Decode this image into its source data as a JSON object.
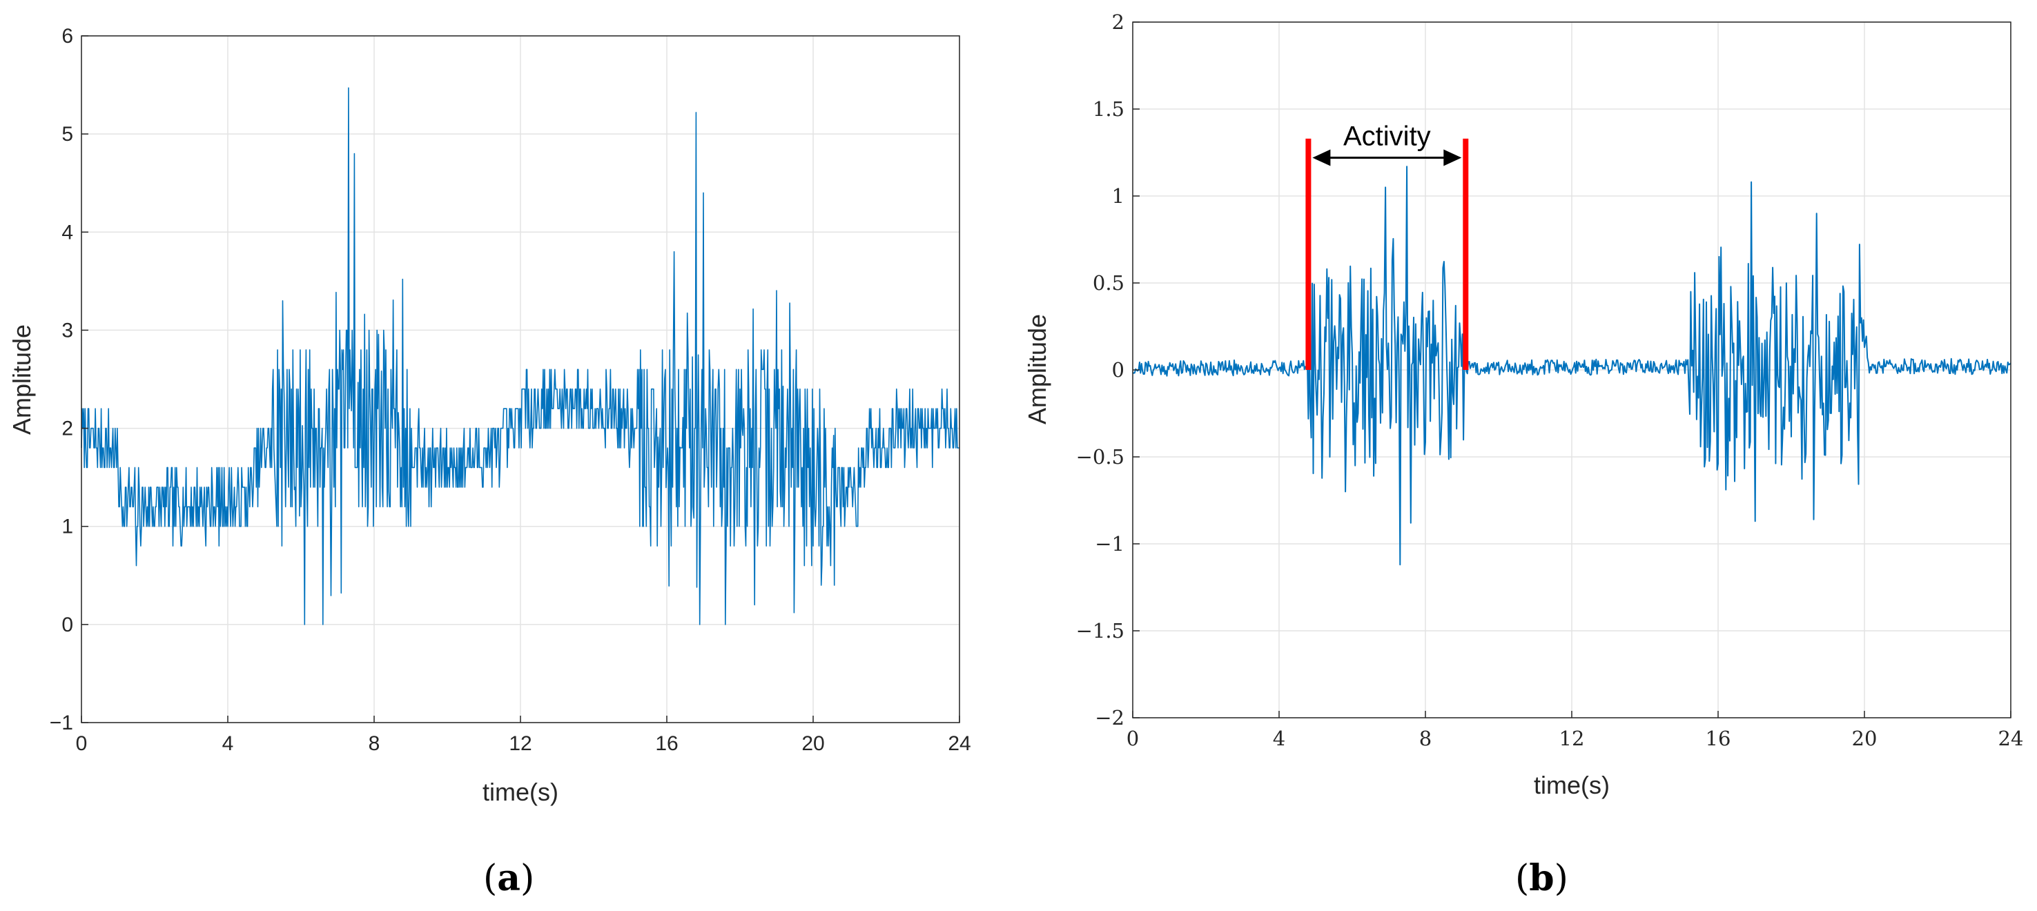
{
  "chart_data": [
    {
      "type": "line",
      "panel": "a",
      "caption_letter": "a",
      "xlabel": "time(s)",
      "ylabel": "Amplitude",
      "xlim": [
        0,
        24
      ],
      "ylim": [
        -1,
        6
      ],
      "xticks": [
        0,
        4,
        8,
        12,
        16,
        20,
        24
      ],
      "yticks": [
        -1,
        0,
        1,
        2,
        3,
        4,
        5,
        6
      ],
      "ytick_labels": [
        "−1",
        "0",
        "1",
        "2",
        "3",
        "4",
        "5",
        "6"
      ],
      "grid": true,
      "color": "#0072BD",
      "samples": 1200,
      "baseline": [
        [
          0,
          1.9
        ],
        [
          0.9,
          1.8
        ],
        [
          1.1,
          1.3
        ],
        [
          1.5,
          1.2
        ],
        [
          4.5,
          1.25
        ],
        [
          5,
          1.8
        ],
        [
          7.5,
          2.1
        ],
        [
          9,
          1.9
        ],
        [
          9.5,
          1.6
        ],
        [
          10.8,
          1.7
        ],
        [
          11.8,
          1.9
        ],
        [
          12,
          2.2
        ],
        [
          13.5,
          2.3
        ],
        [
          14.5,
          2.2
        ],
        [
          15.5,
          1.8
        ],
        [
          17,
          1.8
        ],
        [
          19.5,
          1.8
        ],
        [
          20.5,
          1.3
        ],
        [
          21.2,
          1.4
        ],
        [
          21.5,
          1.8
        ],
        [
          22.5,
          2.0
        ],
        [
          24,
          2.0
        ]
      ],
      "activity_windows": [
        [
          5.2,
          9
        ],
        [
          15.2,
          20.6
        ]
      ],
      "peaks": [
        [
          7.3,
          5.47
        ],
        [
          7.45,
          4.8
        ],
        [
          16.8,
          5.22
        ],
        [
          17.0,
          4.4
        ],
        [
          5.5,
          3.3
        ],
        [
          16.2,
          3.8
        ]
      ],
      "dips": [
        [
          6.1,
          0.0
        ],
        [
          6.6,
          0.0
        ],
        [
          16.9,
          0.0
        ],
        [
          17.6,
          0.0
        ],
        [
          1.5,
          0.6
        ],
        [
          18.4,
          0.2
        ]
      ]
    },
    {
      "type": "line",
      "panel": "b",
      "caption_letter": "b",
      "xlabel": "time(s)",
      "ylabel": "Amplitude",
      "xlim": [
        0,
        24
      ],
      "ylim": [
        -2,
        2
      ],
      "xticks": [
        0,
        4,
        8,
        12,
        16,
        20,
        24
      ],
      "yticks": [
        -2,
        -1.5,
        -1,
        -0.5,
        0,
        0.5,
        1,
        1.5,
        2
      ],
      "ytick_labels": [
        "−2",
        "−1.5",
        "−1",
        "−0.5",
        "0",
        "0.5",
        "1",
        "1.5",
        "2"
      ],
      "grid": true,
      "color": "#0072BD",
      "samples": 900,
      "baseline": [
        [
          0,
          0.01
        ],
        [
          24,
          0.02
        ]
      ],
      "activity_windows": [
        [
          4.8,
          9.1
        ],
        [
          15.2,
          20.1
        ]
      ],
      "peaks": [
        [
          6.9,
          1.05
        ],
        [
          7.5,
          1.17
        ],
        [
          16.9,
          1.08
        ],
        [
          5.3,
          0.58
        ],
        [
          18.7,
          0.9
        ]
      ],
      "dips": [
        [
          7.3,
          -1.12
        ],
        [
          7.6,
          -0.88
        ],
        [
          17.0,
          -0.87
        ],
        [
          18.6,
          -0.86
        ],
        [
          5.8,
          -0.7
        ]
      ],
      "annotations": [
        {
          "text": "Activity",
          "start": 4.8,
          "end": 9.1,
          "bracket_top": 1.33,
          "bracket_bottom": 0.0,
          "arrow_y": 1.22,
          "color": "#ff0000"
        }
      ]
    }
  ]
}
